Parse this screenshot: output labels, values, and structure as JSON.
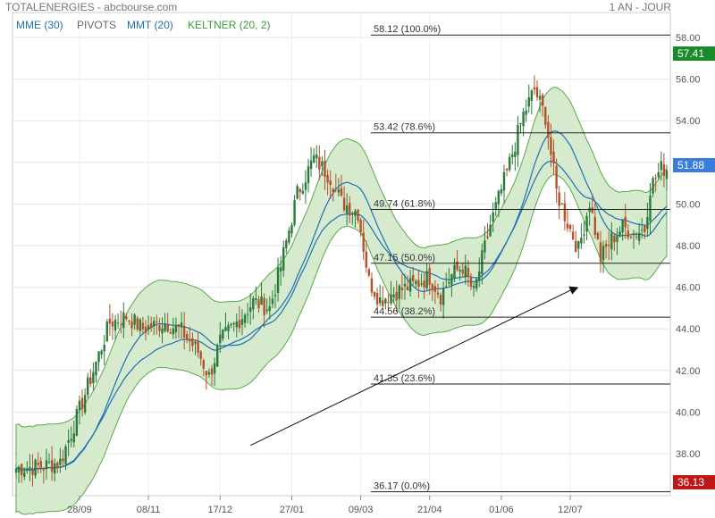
{
  "header": {
    "symbol": "TOTALENERGIES - abcbourse.com",
    "period": "1 AN - JOUR"
  },
  "indicators": [
    {
      "label": "MME (30)",
      "color": "#1f6fb5"
    },
    {
      "label": "PIVOTS",
      "color": "#666666"
    },
    {
      "label": "MMT (20)",
      "color": "#1f6fb5"
    },
    {
      "label": "KELTNER (20, 2)",
      "color": "#3a9a3a"
    }
  ],
  "badges": {
    "high": {
      "value": "57.41",
      "color": "#1a8a2a"
    },
    "last": {
      "value": "51.88",
      "color": "#3b7ddd"
    },
    "low": {
      "value": "36.13",
      "color": "#c01818"
    }
  },
  "colors": {
    "up": "#2a7a3a",
    "down": "#b5502a",
    "band_fill": "#cfe8c6",
    "band_line": "#5aa84a",
    "ma": "#1f6fb5"
  },
  "chart_data": {
    "type": "candlestick",
    "x_ticks": [
      "28/09",
      "08/11",
      "17/12",
      "27/01",
      "09/03",
      "21/04",
      "01/06",
      "12/07"
    ],
    "y_ticks": [
      "38.00",
      "40.00",
      "42.00",
      "44.00",
      "46.00",
      "48.00",
      "50.00",
      "52.00",
      "54.00",
      "56.00",
      "58.00"
    ],
    "ylim": [
      36.0,
      58.2
    ],
    "fibonacci": [
      {
        "value": 58.12,
        "label": "58.12",
        "pct": "(100.0%)"
      },
      {
        "value": 53.42,
        "label": "53.42",
        "pct": "(78.6%)"
      },
      {
        "value": 49.74,
        "label": "49.74",
        "pct": "(61.8%)"
      },
      {
        "value": 47.15,
        "label": "47.15",
        "pct": "(50.0%)"
      },
      {
        "value": 44.56,
        "label": "44.56",
        "pct": "(38.2%)"
      },
      {
        "value": 41.35,
        "label": "41.35",
        "pct": "(23.6%)"
      },
      {
        "value": 36.17,
        "label": "36.17",
        "pct": "(0.0%)"
      }
    ],
    "trend_arrow": {
      "from": [
        85,
        38.4
      ],
      "to": [
        204,
        46.0
      ]
    },
    "close_path": [
      [
        0,
        37.3
      ],
      [
        10,
        37.4
      ],
      [
        16,
        37.6
      ],
      [
        20,
        39.0
      ],
      [
        28,
        42.0
      ],
      [
        34,
        44.3
      ],
      [
        40,
        44.6
      ],
      [
        46,
        44.0
      ],
      [
        54,
        44.3
      ],
      [
        60,
        43.9
      ],
      [
        66,
        42.9
      ],
      [
        70,
        41.7
      ],
      [
        74,
        43.4
      ],
      [
        80,
        44.3
      ],
      [
        86,
        45.3
      ],
      [
        92,
        45.0
      ],
      [
        96,
        47.0
      ],
      [
        102,
        50.5
      ],
      [
        108,
        52.2
      ],
      [
        114,
        51.3
      ],
      [
        118,
        50.1
      ],
      [
        124,
        49.6
      ],
      [
        128,
        46.3
      ],
      [
        132,
        45.4
      ],
      [
        138,
        45.8
      ],
      [
        144,
        46.1
      ],
      [
        150,
        46.5
      ],
      [
        154,
        45.6
      ],
      [
        158,
        46.6
      ],
      [
        162,
        47.0
      ],
      [
        166,
        45.7
      ],
      [
        172,
        49.0
      ],
      [
        178,
        51.5
      ],
      [
        184,
        54.3
      ],
      [
        188,
        55.5
      ],
      [
        192,
        54.2
      ],
      [
        196,
        50.6
      ],
      [
        200,
        49.1
      ],
      [
        204,
        47.8
      ],
      [
        208,
        50.1
      ],
      [
        212,
        47.4
      ],
      [
        216,
        48.3
      ],
      [
        220,
        48.9
      ],
      [
        224,
        48.6
      ],
      [
        228,
        48.8
      ],
      [
        230,
        50.8
      ],
      [
        234,
        51.7
      ]
    ]
  }
}
